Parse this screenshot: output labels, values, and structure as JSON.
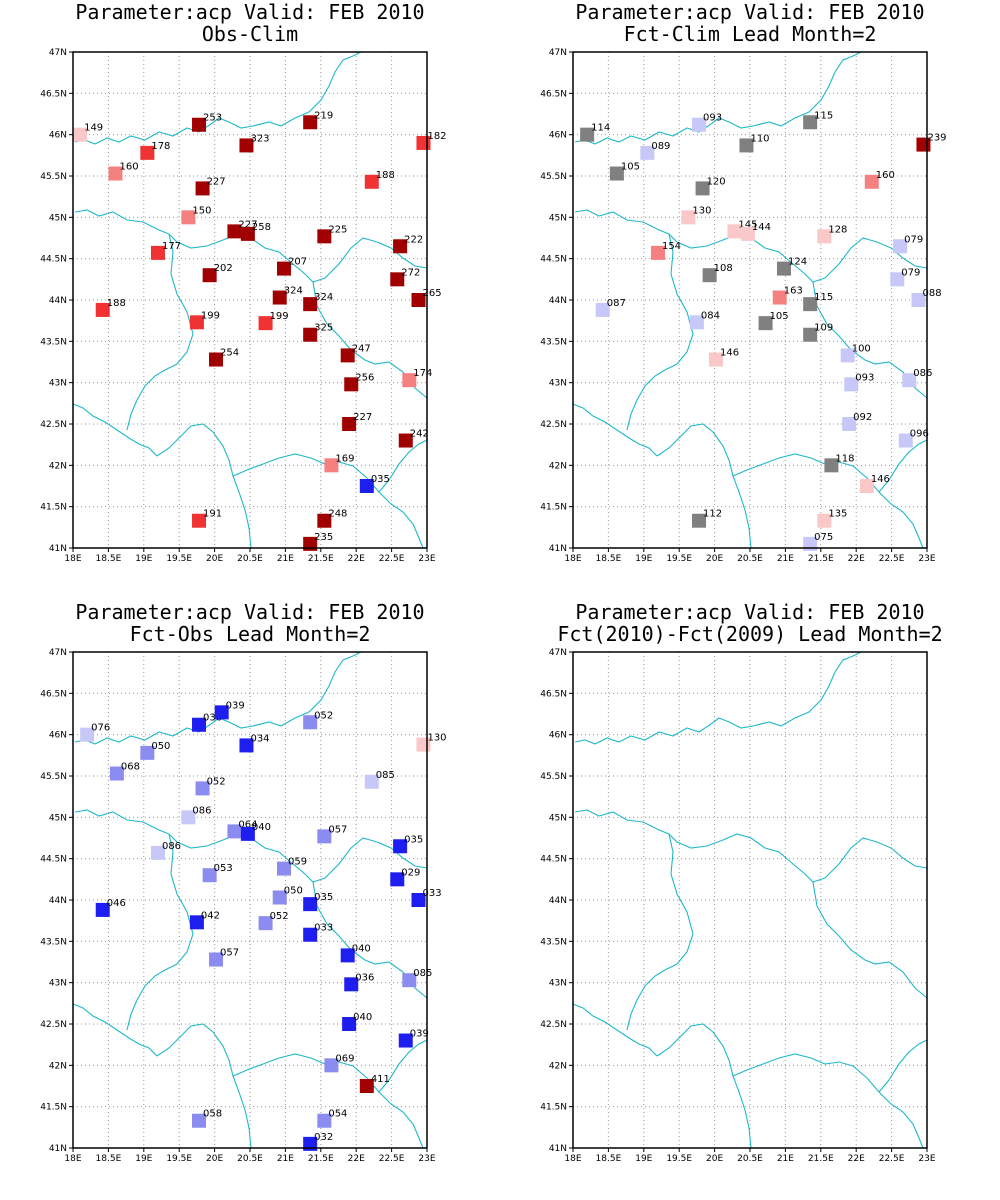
{
  "colors": {
    "border_line": "#1fb8c8",
    "scale": [
      "#1e1ef0",
      "#5a5af0",
      "#8c8cf0",
      "#c8c8f8",
      "#808080",
      "#fac8c8",
      "#f58080",
      "#f03232",
      "#a00000"
    ]
  },
  "axes": {
    "lon_labels": [
      "18E",
      "18.5E",
      "19E",
      "19.5E",
      "20E",
      "20.5E",
      "21E",
      "21.5E",
      "22E",
      "22.5E",
      "23E"
    ],
    "lat_labels": [
      "41N",
      "41.5N",
      "42N",
      "42.5N",
      "43N",
      "43.5N",
      "44N",
      "44.5N",
      "45N",
      "45.5N",
      "46N",
      "46.5N",
      "47N"
    ]
  },
  "panels": [
    {
      "title_line1": "Parameter:acp Valid: FEB 2010",
      "title_line2": "Obs-Clim",
      "stations": [
        {
          "lon": 18.1,
          "lat": 46.0,
          "label": "149",
          "cls": 5
        },
        {
          "lon": 19.05,
          "lat": 45.78,
          "label": "178",
          "cls": 7
        },
        {
          "lon": 18.6,
          "lat": 45.53,
          "label": "160",
          "cls": 6
        },
        {
          "lon": 19.78,
          "lat": 46.12,
          "label": "253",
          "cls": 8
        },
        {
          "lon": 20.45,
          "lat": 45.87,
          "label": "323",
          "cls": 8
        },
        {
          "lon": 21.35,
          "lat": 46.15,
          "label": "219",
          "cls": 8
        },
        {
          "lon": 22.95,
          "lat": 45.9,
          "label": "182",
          "cls": 7
        },
        {
          "lon": 19.83,
          "lat": 45.35,
          "label": "227",
          "cls": 8
        },
        {
          "lon": 22.22,
          "lat": 45.43,
          "label": "188",
          "cls": 7
        },
        {
          "lon": 19.63,
          "lat": 45.0,
          "label": "150",
          "cls": 6
        },
        {
          "lon": 20.28,
          "lat": 44.83,
          "label": "227",
          "cls": 8
        },
        {
          "lon": 20.47,
          "lat": 44.8,
          "label": "258",
          "cls": 8
        },
        {
          "lon": 21.55,
          "lat": 44.77,
          "label": "225",
          "cls": 8
        },
        {
          "lon": 22.62,
          "lat": 44.65,
          "label": "222",
          "cls": 8
        },
        {
          "lon": 19.2,
          "lat": 44.57,
          "label": "177",
          "cls": 7
        },
        {
          "lon": 19.93,
          "lat": 44.3,
          "label": "202",
          "cls": 8
        },
        {
          "lon": 20.98,
          "lat": 44.38,
          "label": "207",
          "cls": 8
        },
        {
          "lon": 22.58,
          "lat": 44.25,
          "label": "272",
          "cls": 8
        },
        {
          "lon": 20.92,
          "lat": 44.03,
          "label": "324",
          "cls": 8
        },
        {
          "lon": 21.35,
          "lat": 43.95,
          "label": "324",
          "cls": 8
        },
        {
          "lon": 22.88,
          "lat": 44.0,
          "label": "265",
          "cls": 8
        },
        {
          "lon": 18.42,
          "lat": 43.88,
          "label": "188",
          "cls": 7
        },
        {
          "lon": 19.75,
          "lat": 43.73,
          "label": "199",
          "cls": 7
        },
        {
          "lon": 20.72,
          "lat": 43.72,
          "label": "199",
          "cls": 7
        },
        {
          "lon": 21.35,
          "lat": 43.58,
          "label": "325",
          "cls": 8
        },
        {
          "lon": 20.02,
          "lat": 43.28,
          "label": "254",
          "cls": 8
        },
        {
          "lon": 21.88,
          "lat": 43.33,
          "label": "247",
          "cls": 8
        },
        {
          "lon": 21.93,
          "lat": 42.98,
          "label": "256",
          "cls": 8
        },
        {
          "lon": 22.75,
          "lat": 43.03,
          "label": "174",
          "cls": 6
        },
        {
          "lon": 21.9,
          "lat": 42.5,
          "label": "227",
          "cls": 8
        },
        {
          "lon": 22.7,
          "lat": 42.3,
          "label": "242",
          "cls": 8
        },
        {
          "lon": 21.65,
          "lat": 42.0,
          "label": "169",
          "cls": 6
        },
        {
          "lon": 22.15,
          "lat": 41.75,
          "label": "035",
          "cls": 0
        },
        {
          "lon": 19.78,
          "lat": 41.33,
          "label": "191",
          "cls": 7
        },
        {
          "lon": 21.55,
          "lat": 41.33,
          "label": "248",
          "cls": 8
        },
        {
          "lon": 21.35,
          "lat": 41.05,
          "label": "235",
          "cls": 8
        }
      ]
    },
    {
      "title_line1": "Parameter:acp Valid: FEB 2010",
      "title_line2": "Fct-Clim Lead Month=2",
      "stations": [
        {
          "lon": 18.2,
          "lat": 46.0,
          "label": "114",
          "cls": 4
        },
        {
          "lon": 19.05,
          "lat": 45.78,
          "label": "089",
          "cls": 3
        },
        {
          "lon": 18.62,
          "lat": 45.53,
          "label": "105",
          "cls": 4
        },
        {
          "lon": 19.78,
          "lat": 46.12,
          "label": "093",
          "cls": 3
        },
        {
          "lon": 20.45,
          "lat": 45.87,
          "label": "110",
          "cls": 4
        },
        {
          "lon": 21.35,
          "lat": 46.15,
          "label": "115",
          "cls": 4
        },
        {
          "lon": 22.95,
          "lat": 45.88,
          "label": "239",
          "cls": 8
        },
        {
          "lon": 19.83,
          "lat": 45.35,
          "label": "120",
          "cls": 4
        },
        {
          "lon": 22.22,
          "lat": 45.43,
          "label": "160",
          "cls": 6
        },
        {
          "lon": 19.63,
          "lat": 45.0,
          "label": "130",
          "cls": 5
        },
        {
          "lon": 20.28,
          "lat": 44.83,
          "label": "145",
          "cls": 5
        },
        {
          "lon": 20.47,
          "lat": 44.8,
          "label": "144",
          "cls": 5
        },
        {
          "lon": 21.55,
          "lat": 44.77,
          "label": "128",
          "cls": 5
        },
        {
          "lon": 22.62,
          "lat": 44.65,
          "label": "079",
          "cls": 3
        },
        {
          "lon": 19.2,
          "lat": 44.57,
          "label": "154",
          "cls": 6
        },
        {
          "lon": 19.93,
          "lat": 44.3,
          "label": "108",
          "cls": 4
        },
        {
          "lon": 20.98,
          "lat": 44.38,
          "label": "124",
          "cls": 4
        },
        {
          "lon": 22.58,
          "lat": 44.25,
          "label": "079",
          "cls": 3
        },
        {
          "lon": 20.92,
          "lat": 44.03,
          "label": "163",
          "cls": 6
        },
        {
          "lon": 21.35,
          "lat": 43.95,
          "label": "115",
          "cls": 4
        },
        {
          "lon": 22.88,
          "lat": 44.0,
          "label": "088",
          "cls": 3
        },
        {
          "lon": 18.42,
          "lat": 43.88,
          "label": "087",
          "cls": 3
        },
        {
          "lon": 19.75,
          "lat": 43.73,
          "label": "084",
          "cls": 3
        },
        {
          "lon": 20.72,
          "lat": 43.72,
          "label": "105",
          "cls": 4
        },
        {
          "lon": 21.35,
          "lat": 43.58,
          "label": "109",
          "cls": 4
        },
        {
          "lon": 20.02,
          "lat": 43.28,
          "label": "146",
          "cls": 5
        },
        {
          "lon": 21.88,
          "lat": 43.33,
          "label": "100",
          "cls": 3
        },
        {
          "lon": 21.93,
          "lat": 42.98,
          "label": "093",
          "cls": 3
        },
        {
          "lon": 22.75,
          "lat": 43.03,
          "label": "086",
          "cls": 3
        },
        {
          "lon": 21.9,
          "lat": 42.5,
          "label": "092",
          "cls": 3
        },
        {
          "lon": 22.7,
          "lat": 42.3,
          "label": "096",
          "cls": 3
        },
        {
          "lon": 21.65,
          "lat": 42.0,
          "label": "118",
          "cls": 4
        },
        {
          "lon": 22.15,
          "lat": 41.75,
          "label": "146",
          "cls": 5
        },
        {
          "lon": 19.78,
          "lat": 41.33,
          "label": "112",
          "cls": 4
        },
        {
          "lon": 21.55,
          "lat": 41.33,
          "label": "135",
          "cls": 5
        },
        {
          "lon": 21.35,
          "lat": 41.05,
          "label": "075",
          "cls": 3
        }
      ]
    },
    {
      "title_line1": "Parameter:acp Valid: FEB 2010",
      "title_line2": "Fct-Obs Lead Month=2",
      "stations": [
        {
          "lon": 18.2,
          "lat": 46.0,
          "label": "076",
          "cls": 3
        },
        {
          "lon": 19.05,
          "lat": 45.78,
          "label": "050",
          "cls": 2
        },
        {
          "lon": 18.62,
          "lat": 45.53,
          "label": "068",
          "cls": 2
        },
        {
          "lon": 19.78,
          "lat": 46.12,
          "label": "036",
          "cls": 0
        },
        {
          "lon": 20.1,
          "lat": 46.27,
          "label": "039",
          "cls": 0
        },
        {
          "lon": 20.45,
          "lat": 45.87,
          "label": "034",
          "cls": 0
        },
        {
          "lon": 21.35,
          "lat": 46.15,
          "label": "052",
          "cls": 2
        },
        {
          "lon": 22.95,
          "lat": 45.88,
          "label": "130",
          "cls": 5
        },
        {
          "lon": 19.83,
          "lat": 45.35,
          "label": "052",
          "cls": 2
        },
        {
          "lon": 22.22,
          "lat": 45.43,
          "label": "085",
          "cls": 3
        },
        {
          "lon": 19.63,
          "lat": 45.0,
          "label": "086",
          "cls": 3
        },
        {
          "lon": 20.28,
          "lat": 44.83,
          "label": "064",
          "cls": 2
        },
        {
          "lon": 20.47,
          "lat": 44.8,
          "label": "040",
          "cls": 0
        },
        {
          "lon": 21.55,
          "lat": 44.77,
          "label": "057",
          "cls": 2
        },
        {
          "lon": 22.62,
          "lat": 44.65,
          "label": "035",
          "cls": 0
        },
        {
          "lon": 19.2,
          "lat": 44.57,
          "label": "086",
          "cls": 3
        },
        {
          "lon": 19.93,
          "lat": 44.3,
          "label": "053",
          "cls": 2
        },
        {
          "lon": 20.98,
          "lat": 44.38,
          "label": "059",
          "cls": 2
        },
        {
          "lon": 22.58,
          "lat": 44.25,
          "label": "029",
          "cls": 0
        },
        {
          "lon": 20.92,
          "lat": 44.03,
          "label": "050",
          "cls": 2
        },
        {
          "lon": 21.35,
          "lat": 43.95,
          "label": "035",
          "cls": 0
        },
        {
          "lon": 22.88,
          "lat": 44.0,
          "label": "033",
          "cls": 0
        },
        {
          "lon": 18.42,
          "lat": 43.88,
          "label": "046",
          "cls": 0
        },
        {
          "lon": 19.75,
          "lat": 43.73,
          "label": "042",
          "cls": 0
        },
        {
          "lon": 20.72,
          "lat": 43.72,
          "label": "052",
          "cls": 2
        },
        {
          "lon": 21.35,
          "lat": 43.58,
          "label": "033",
          "cls": 0
        },
        {
          "lon": 20.02,
          "lat": 43.28,
          "label": "057",
          "cls": 2
        },
        {
          "lon": 21.88,
          "lat": 43.33,
          "label": "040",
          "cls": 0
        },
        {
          "lon": 21.93,
          "lat": 42.98,
          "label": "036",
          "cls": 0
        },
        {
          "lon": 22.75,
          "lat": 43.03,
          "label": "085",
          "cls": 2
        },
        {
          "lon": 21.9,
          "lat": 42.5,
          "label": "040",
          "cls": 0
        },
        {
          "lon": 22.7,
          "lat": 42.3,
          "label": "039",
          "cls": 0
        },
        {
          "lon": 21.65,
          "lat": 42.0,
          "label": "069",
          "cls": 2
        },
        {
          "lon": 22.15,
          "lat": 41.75,
          "label": "411",
          "cls": 8
        },
        {
          "lon": 19.78,
          "lat": 41.33,
          "label": "058",
          "cls": 2
        },
        {
          "lon": 21.55,
          "lat": 41.33,
          "label": "054",
          "cls": 2
        },
        {
          "lon": 21.35,
          "lat": 41.05,
          "label": "032",
          "cls": 0
        }
      ]
    },
    {
      "title_line1": "Parameter:acp Valid: FEB 2010",
      "title_line2": "Fct(2010)-Fct(2009) Lead Month=2",
      "stations": []
    }
  ]
}
